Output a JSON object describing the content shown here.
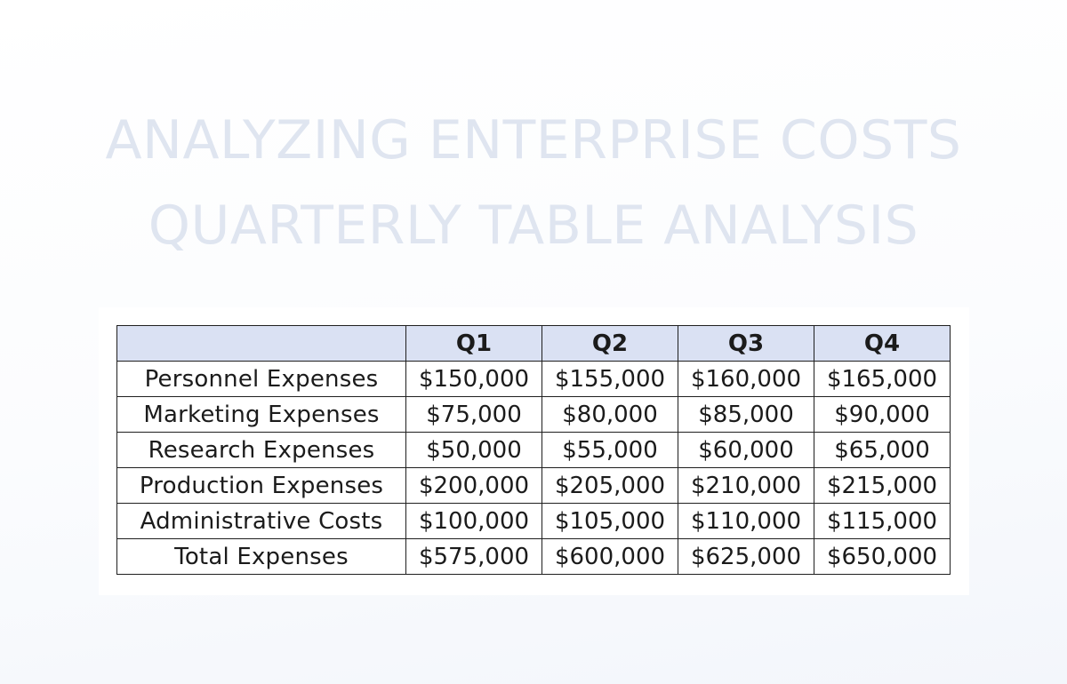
{
  "title_lines": [
    "ANALYZING ENTERPRISE COSTS",
    "QUARTERLY TABLE ANALYSIS"
  ],
  "table": {
    "corner": "",
    "headers": [
      "Q1",
      "Q2",
      "Q3",
      "Q4"
    ],
    "rows": [
      {
        "label": "Personnel Expenses",
        "values": [
          "$150,000",
          "$155,000",
          "$160,000",
          "$165,000"
        ]
      },
      {
        "label": "Marketing Expenses",
        "values": [
          "$75,000",
          "$80,000",
          "$85,000",
          "$90,000"
        ]
      },
      {
        "label": "Research Expenses",
        "values": [
          "$50,000",
          "$55,000",
          "$60,000",
          "$65,000"
        ]
      },
      {
        "label": "Production Expenses",
        "values": [
          "$200,000",
          "$205,000",
          "$210,000",
          "$215,000"
        ]
      },
      {
        "label": "Administrative Costs",
        "values": [
          "$100,000",
          "$105,000",
          "$110,000",
          "$115,000"
        ]
      },
      {
        "label": "Total Expenses",
        "values": [
          "$575,000",
          "$600,000",
          "$625,000",
          "$650,000"
        ]
      }
    ]
  },
  "colors": {
    "title": "#dfe5f0",
    "header_background": "#dae1f3",
    "border": "#1f1f1f",
    "text": "#1b1b1b"
  }
}
